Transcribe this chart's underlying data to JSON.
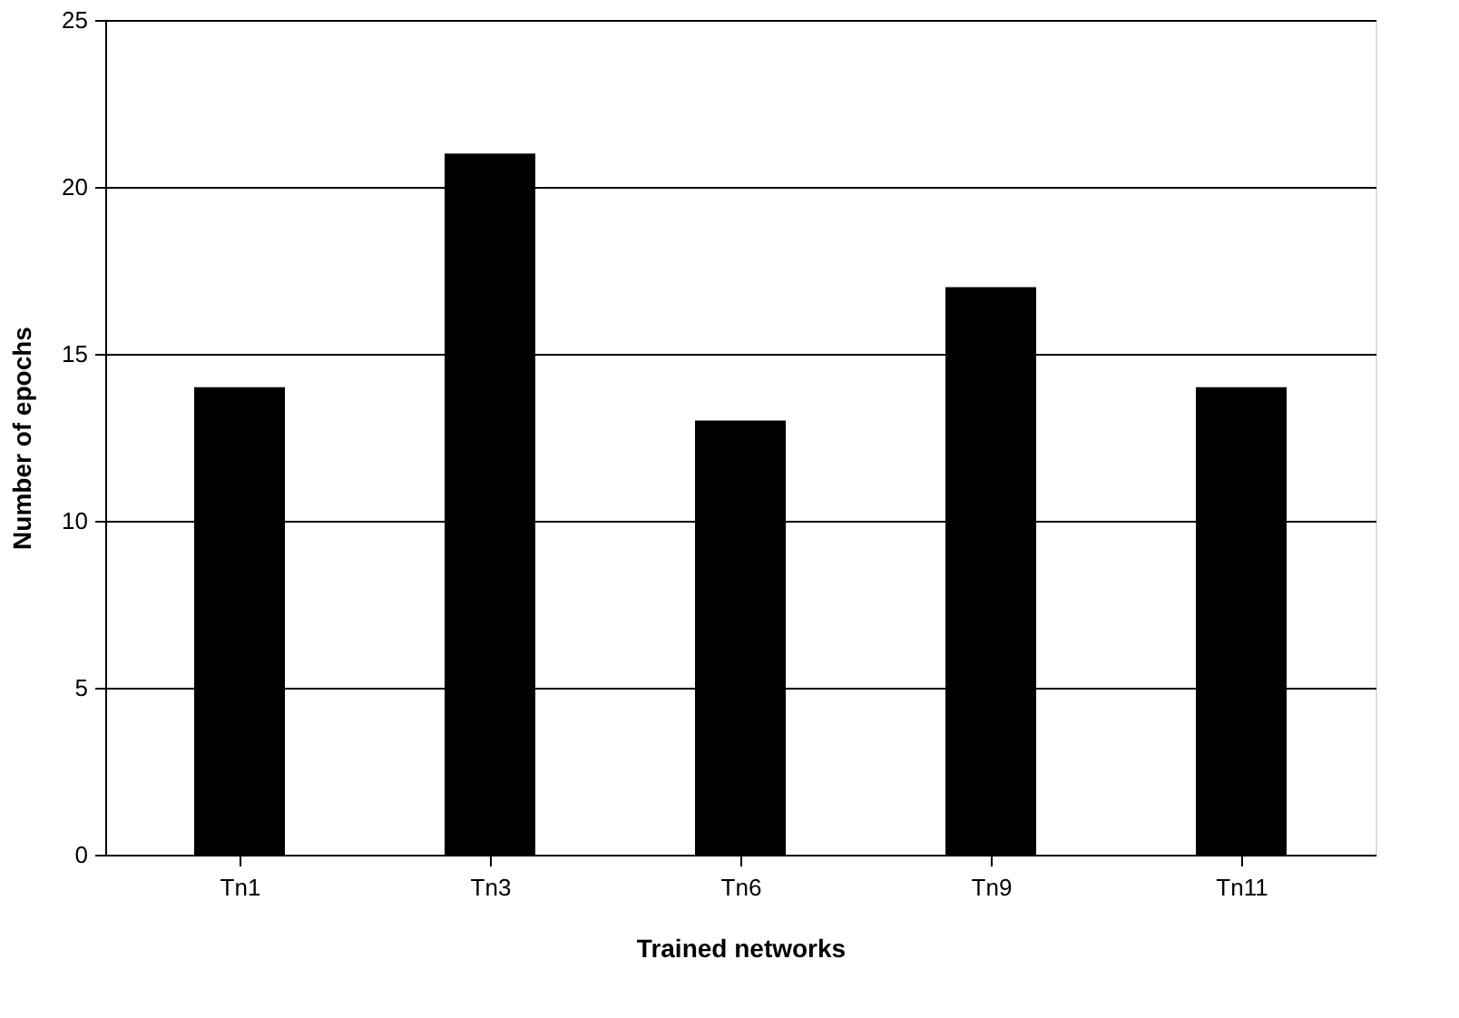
{
  "chart_data": {
    "type": "bar",
    "xlabel": "Trained networks",
    "ylabel": "Number of epochs",
    "categories": [
      "Tn1",
      "Tn3",
      "Tn6",
      "Tn9",
      "Tn11"
    ],
    "values": [
      14,
      21,
      13,
      17,
      14
    ],
    "color": "#000000",
    "ylim": [
      0,
      25
    ],
    "yticks": [
      0,
      5,
      10,
      15,
      20,
      25
    ],
    "grid": "y"
  }
}
